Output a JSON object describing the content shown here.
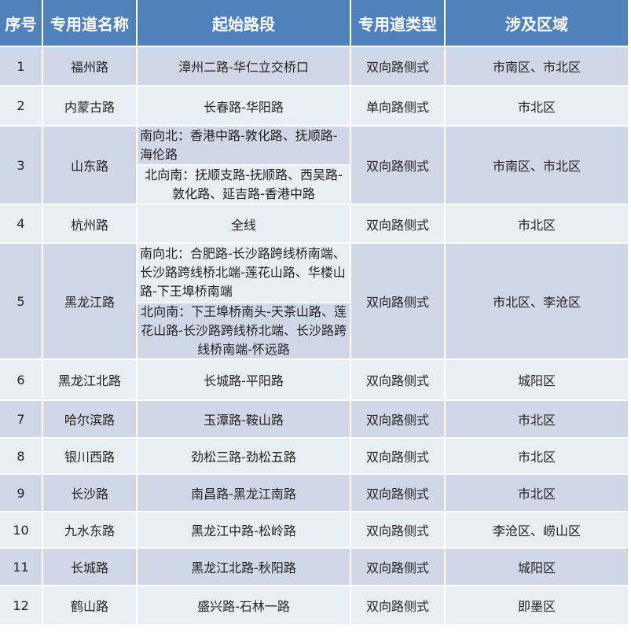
{
  "headers": [
    "序号",
    "专用道名称",
    "起始路段",
    "专用道类型",
    "涉及区域"
  ],
  "rows": [
    {
      "no": "1",
      "name": "福州路",
      "segment": "漳州二路-华仁立交桥口",
      "type": "双向路侧式",
      "area": "市南区、市北区"
    },
    {
      "no": "2",
      "name": "内蒙古路",
      "segment": "长春路-华阳路",
      "type": "单向路侧式",
      "area": "市北区"
    },
    {
      "no": "3",
      "name": "山东路",
      "segment_s2n": "南向北：香港中路-敦化路、抚顺路-海伦路",
      "segment_n2s": "北向南：抚顺支路-抚顺路、西吴路-敦化路、延吉路-香港中路",
      "type": "双向路侧式",
      "area": "市南区、市北区"
    },
    {
      "no": "4",
      "name": "杭州路",
      "segment": "全线",
      "type": "双向路侧式",
      "area": "市北区"
    },
    {
      "no": "5",
      "name": "黑龙江路",
      "segment_s2n": "南向北：合肥路-长沙路跨线桥南端、长沙路跨线桥北端-莲花山路、华楼山路-下王埠桥南端",
      "segment_n2s": "北向南：下王埠桥南头-天茶山路、莲花山路-长沙路跨线桥北端、长沙路跨线桥南端-怀远路",
      "type": "双向路侧式",
      "area": "市北区、李沧区"
    },
    {
      "no": "6",
      "name": "黑龙江北路",
      "segment": "长城路-平阳路",
      "type": "双向路侧式",
      "area": "城阳区"
    },
    {
      "no": "7",
      "name": "哈尔滨路",
      "segment": "玉潭路-鞍山路",
      "type": "双向路侧式",
      "area": "市北区"
    },
    {
      "no": "8",
      "name": "银川西路",
      "segment": "劲松三路-劲松五路",
      "type": "双向路侧式",
      "area": "市北区"
    },
    {
      "no": "9",
      "name": "长沙路",
      "segment": "南昌路-黑龙江南路",
      "type": "双向路侧式",
      "area": "市北区"
    },
    {
      "no": "10",
      "name": "九水东路",
      "segment": "黑龙江中路-松岭路",
      "type": "双向路侧式",
      "area": "李沧区、崂山区"
    },
    {
      "no": "11",
      "name": "长城路",
      "segment": "黑龙江北路-秋阳路",
      "type": "双向路侧式",
      "area": "城阳区"
    },
    {
      "no": "12",
      "name": "鹤山路",
      "segment": "盛兴路-石林一路",
      "type": "双向路侧式",
      "area": "即墨区"
    }
  ],
  "colors": {
    "header": "#4f81bd",
    "row_odd": "#d0d8e8",
    "row_even": "#e9edf4"
  }
}
